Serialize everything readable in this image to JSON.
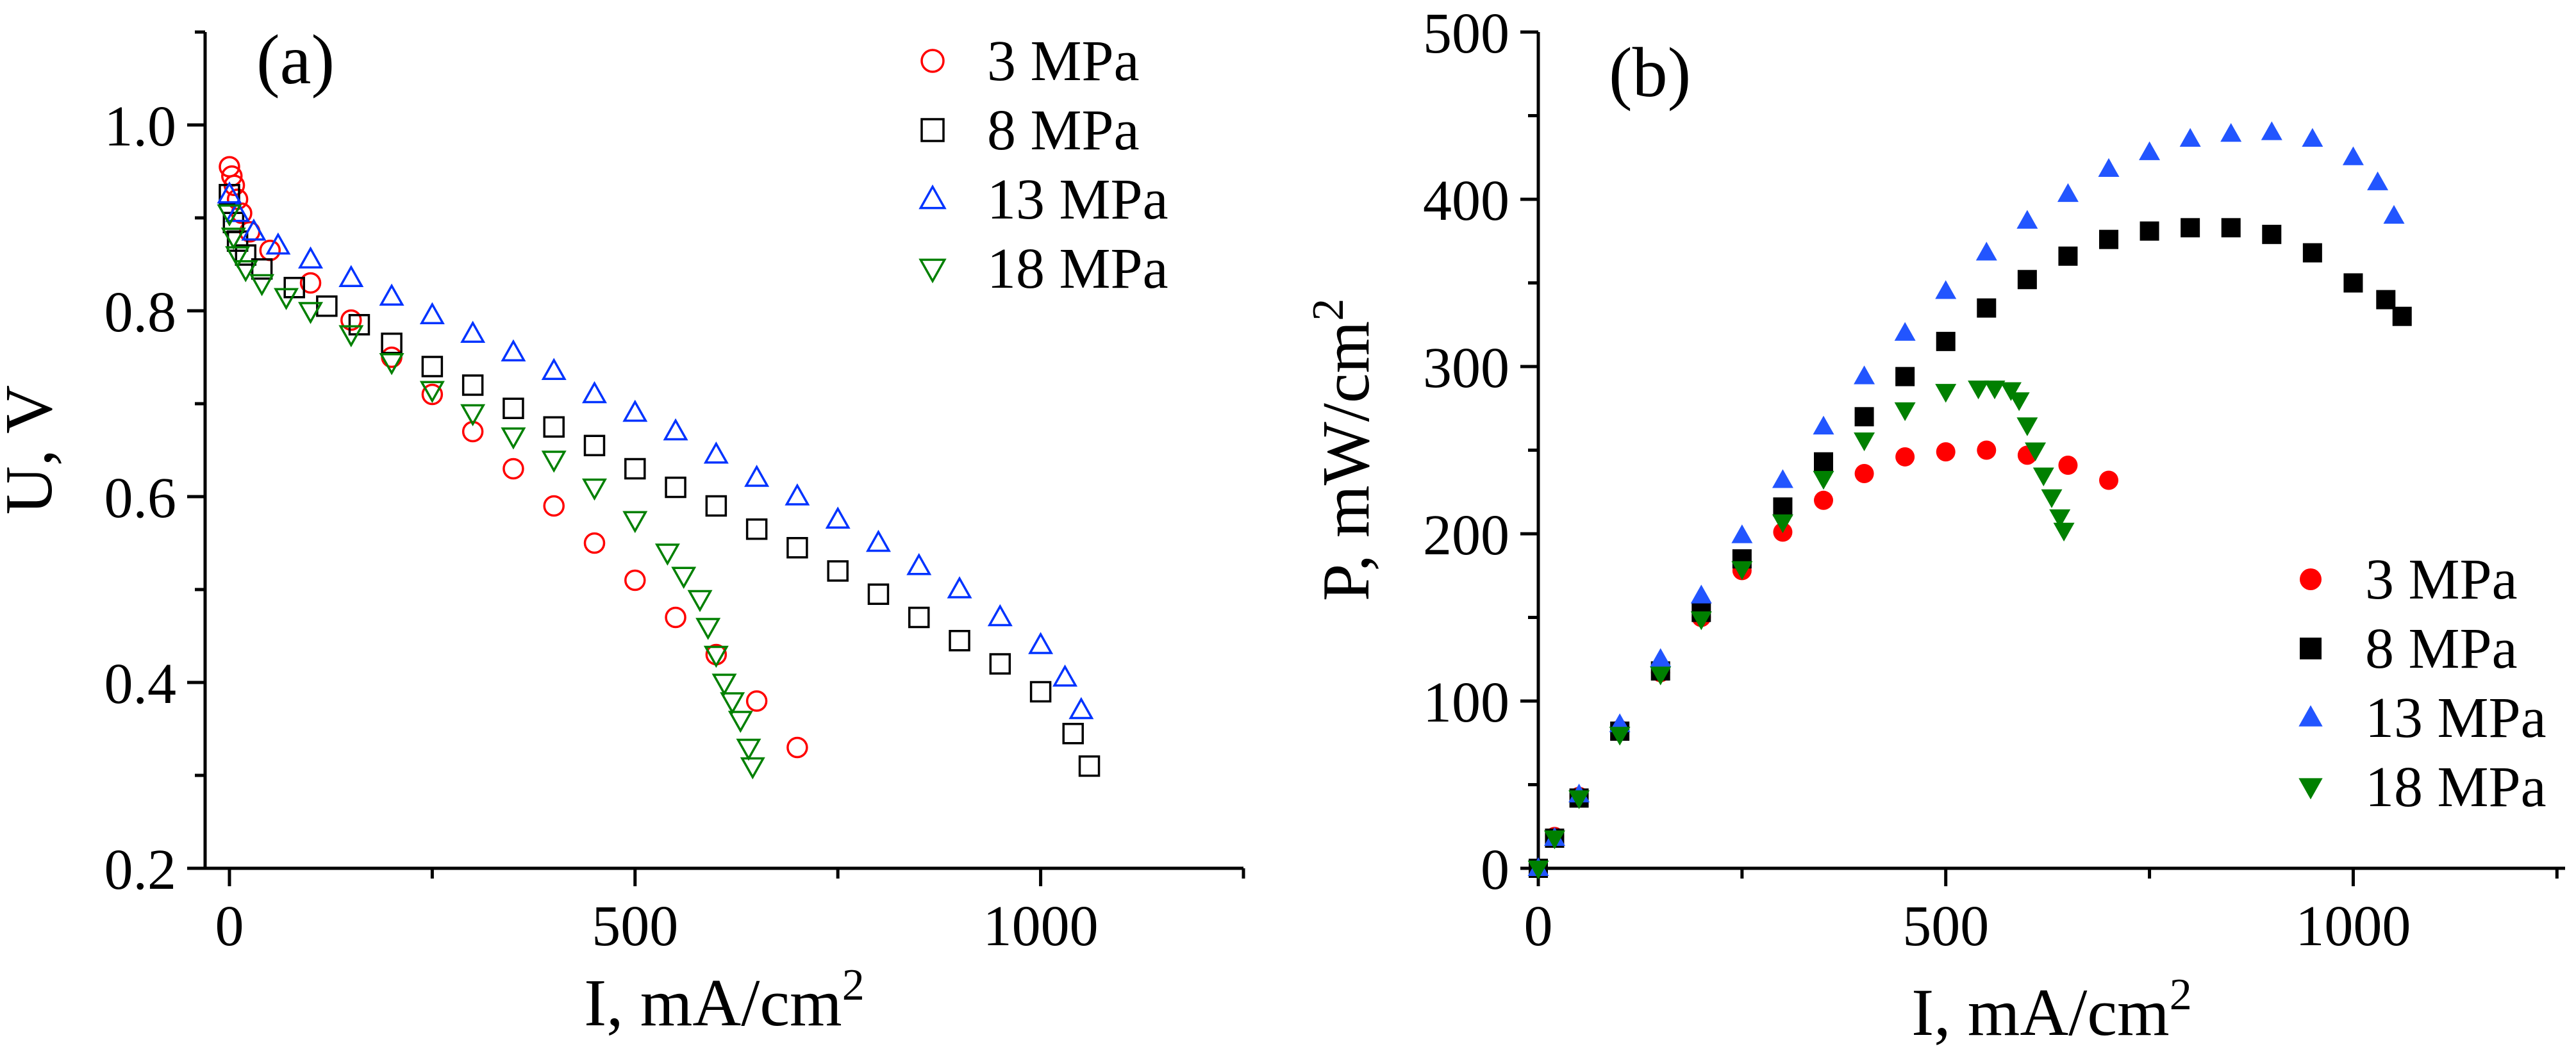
{
  "chart_data": [
    {
      "panel_label": "(a)",
      "type": "scatter",
      "xlabel": "I, mA/cm",
      "xlabel_sup": "2",
      "ylabel": "U, V",
      "xlim": [
        -30,
        1250
      ],
      "ylim": [
        0.2,
        1.1
      ],
      "xticks": [
        0,
        500,
        1000
      ],
      "xtick_labels": [
        "0",
        "500",
        "1000"
      ],
      "yticks": [
        0.2,
        0.4,
        0.6,
        0.8,
        1.0
      ],
      "ytick_labels": [
        "0.2",
        "0.4",
        "0.6",
        "0.8",
        "1.0"
      ],
      "grid": false,
      "legend_position": "top-right",
      "series": [
        {
          "name": "3 MPa",
          "marker": "circle-open",
          "color": "#ff0000",
          "x": [
            0,
            3,
            6,
            10,
            15,
            25,
            50,
            100,
            150,
            200,
            250,
            300,
            350,
            400,
            450,
            500,
            550,
            600,
            650,
            700
          ],
          "y": [
            0.955,
            0.945,
            0.935,
            0.92,
            0.905,
            0.885,
            0.865,
            0.83,
            0.79,
            0.75,
            0.71,
            0.67,
            0.63,
            0.59,
            0.55,
            0.51,
            0.47,
            0.43,
            0.38,
            0.33
          ]
        },
        {
          "name": "8 MPa",
          "marker": "square-open",
          "color": "#000000",
          "x": [
            0,
            5,
            10,
            20,
            40,
            80,
            120,
            160,
            200,
            250,
            300,
            350,
            400,
            450,
            500,
            550,
            600,
            650,
            700,
            750,
            800,
            850,
            900,
            950,
            1000,
            1040,
            1060
          ],
          "y": [
            0.925,
            0.895,
            0.875,
            0.86,
            0.845,
            0.825,
            0.805,
            0.785,
            0.765,
            0.74,
            0.72,
            0.695,
            0.675,
            0.655,
            0.63,
            0.61,
            0.59,
            0.565,
            0.545,
            0.52,
            0.495,
            0.47,
            0.445,
            0.42,
            0.39,
            0.345,
            0.31
          ]
        },
        {
          "name": "13 MPa",
          "marker": "triangle-up-open",
          "color": "#0033ff",
          "x": [
            0,
            10,
            30,
            60,
            100,
            150,
            200,
            250,
            300,
            350,
            400,
            450,
            500,
            550,
            600,
            650,
            700,
            750,
            800,
            850,
            900,
            950,
            1000,
            1030,
            1050
          ],
          "y": [
            0.925,
            0.905,
            0.885,
            0.87,
            0.855,
            0.835,
            0.815,
            0.795,
            0.775,
            0.755,
            0.735,
            0.71,
            0.69,
            0.67,
            0.645,
            0.62,
            0.6,
            0.575,
            0.55,
            0.525,
            0.5,
            0.47,
            0.44,
            0.405,
            0.37
          ]
        },
        {
          "name": "18 MPa",
          "marker": "triangle-down-open",
          "color": "#008000",
          "x": [
            0,
            5,
            10,
            20,
            40,
            70,
            100,
            150,
            200,
            250,
            300,
            350,
            400,
            450,
            500,
            540,
            560,
            580,
            590,
            600,
            610,
            620,
            630,
            640,
            645
          ],
          "y": [
            0.905,
            0.88,
            0.86,
            0.845,
            0.83,
            0.815,
            0.8,
            0.775,
            0.745,
            0.715,
            0.69,
            0.665,
            0.64,
            0.61,
            0.575,
            0.54,
            0.515,
            0.49,
            0.46,
            0.43,
            0.4,
            0.38,
            0.36,
            0.33,
            0.31
          ]
        }
      ]
    },
    {
      "panel_label": "(b)",
      "type": "scatter",
      "xlabel": "I, mA/cm",
      "xlabel_sup": "2",
      "ylabel": "P, mW/cm",
      "ylabel_sup": "2",
      "xlim": [
        0,
        1260
      ],
      "ylim": [
        0,
        500
      ],
      "xticks": [
        0,
        500,
        1000
      ],
      "xtick_labels": [
        "0",
        "500",
        "1000"
      ],
      "yticks": [
        0,
        100,
        200,
        300,
        400,
        500
      ],
      "ytick_labels": [
        "0",
        "100",
        "200",
        "300",
        "400",
        "500"
      ],
      "grid": false,
      "legend_position": "bottom-right",
      "series": [
        {
          "name": "3 MPa",
          "marker": "circle-filled",
          "color": "#ff0000",
          "x": [
            0,
            20,
            50,
            100,
            150,
            200,
            250,
            300,
            350,
            400,
            450,
            500,
            550,
            600,
            650,
            700
          ],
          "y": [
            0,
            19,
            43,
            83,
            117,
            150,
            178,
            201,
            220,
            236,
            246,
            249,
            250,
            247,
            241,
            232
          ]
        },
        {
          "name": "8 MPa",
          "marker": "square-filled",
          "color": "#000000",
          "x": [
            0,
            20,
            50,
            100,
            150,
            200,
            250,
            300,
            350,
            400,
            450,
            500,
            550,
            600,
            650,
            700,
            750,
            800,
            850,
            900,
            950,
            1000,
            1040,
            1060
          ],
          "y": [
            0,
            18,
            42,
            82,
            118,
            153,
            185,
            216,
            243,
            270,
            294,
            315,
            335,
            352,
            366,
            376,
            381,
            383,
            383,
            379,
            368,
            350,
            340,
            330
          ]
        },
        {
          "name": "13 MPa",
          "marker": "triangle-up-filled",
          "color": "#2255ff",
          "x": [
            0,
            20,
            50,
            100,
            150,
            200,
            250,
            300,
            350,
            400,
            450,
            500,
            550,
            600,
            650,
            700,
            750,
            800,
            850,
            900,
            950,
            1000,
            1030,
            1050
          ],
          "y": [
            0,
            18,
            44,
            86,
            125,
            163,
            199,
            232,
            264,
            294,
            320,
            345,
            368,
            387,
            403,
            418,
            428,
            436,
            439,
            440,
            436,
            425,
            410,
            390
          ]
        },
        {
          "name": "18 MPa",
          "marker": "triangle-down-filled",
          "color": "#008000",
          "x": [
            0,
            20,
            50,
            100,
            150,
            200,
            250,
            300,
            350,
            400,
            450,
            500,
            540,
            560,
            580,
            590,
            600,
            610,
            620,
            630,
            640,
            645
          ],
          "y": [
            0,
            18,
            42,
            80,
            116,
            149,
            179,
            207,
            233,
            256,
            274,
            285,
            287,
            287,
            286,
            280,
            265,
            250,
            235,
            222,
            210,
            202
          ]
        }
      ]
    }
  ]
}
